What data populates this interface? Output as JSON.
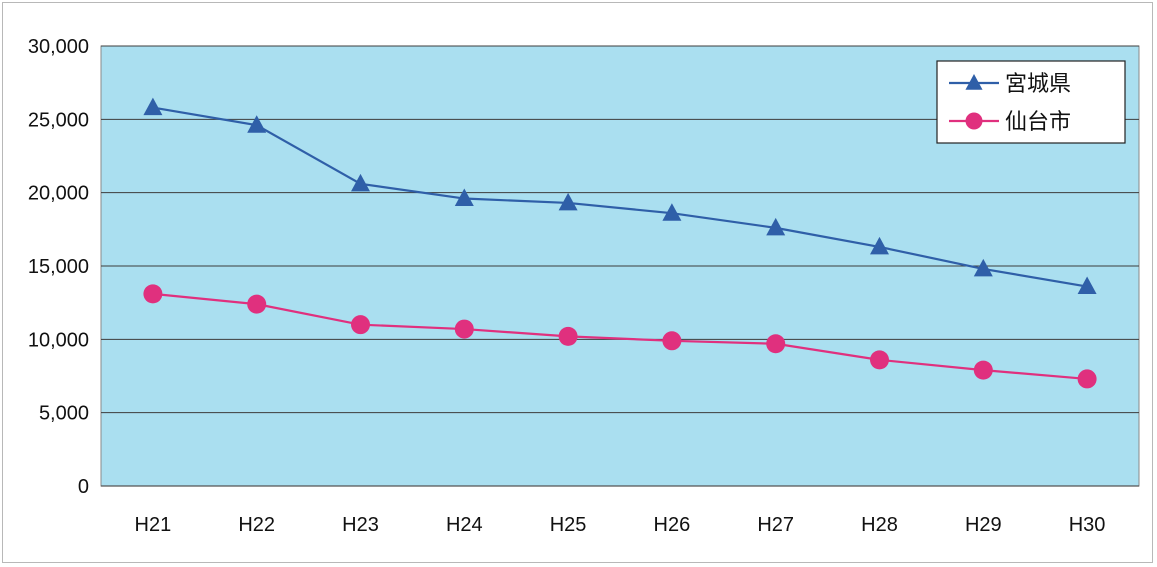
{
  "chart_data": {
    "type": "line",
    "title": "",
    "xlabel": "",
    "ylabel": "",
    "categories": [
      "H21",
      "H22",
      "H23",
      "H24",
      "H25",
      "H26",
      "H27",
      "H28",
      "H29",
      "H30"
    ],
    "ylim": [
      0,
      30000
    ],
    "yticks": [
      0,
      5000,
      10000,
      15000,
      20000,
      25000,
      30000
    ],
    "ytick_labels": [
      "0",
      "5,000",
      "10,000",
      "15,000",
      "20,000",
      "25,000",
      "30,000"
    ],
    "grid": true,
    "legend_position": "top-right",
    "plot_background": "#aadff0",
    "series": [
      {
        "name": "宮城県",
        "marker": "triangle",
        "color": "#2f5fa8",
        "values": [
          25800,
          24600,
          20600,
          19600,
          19300,
          18600,
          17600,
          16300,
          14800,
          13600
        ]
      },
      {
        "name": "仙台市",
        "marker": "circle",
        "color": "#e0307e",
        "values": [
          13100,
          12400,
          11000,
          10700,
          10200,
          9900,
          9700,
          8600,
          7900,
          7300
        ]
      }
    ]
  }
}
